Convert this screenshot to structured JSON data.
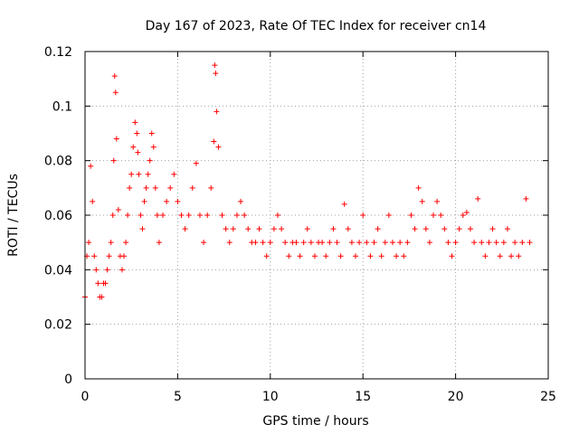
{
  "chart_data": {
    "type": "scatter",
    "title": "Day 167 of 2023, Rate Of TEC Index for receiver cn14",
    "xlabel": "GPS time / hours",
    "ylabel": "ROTI / TECUs",
    "xlim": [
      0,
      25
    ],
    "ylim": [
      0,
      0.12
    ],
    "x_ticks": [
      0,
      5,
      10,
      15,
      20,
      25
    ],
    "x_tick_labels": [
      "0",
      "5",
      "10",
      "15",
      "20",
      "25"
    ],
    "y_ticks": [
      0,
      0.02,
      0.04,
      0.06,
      0.08,
      0.1,
      0.12
    ],
    "y_tick_labels": [
      "0",
      "0.02",
      "0.04",
      "0.06",
      "0.08",
      "0.1",
      "0.12"
    ],
    "grid": true,
    "marker": "+",
    "color": "#ff0000",
    "series": [
      {
        "name": "ROTI",
        "x": [
          0.0,
          0.1,
          0.2,
          0.3,
          0.4,
          0.5,
          0.6,
          0.7,
          0.8,
          0.9,
          1.0,
          1.1,
          1.2,
          1.3,
          1.4,
          1.5,
          1.55,
          1.6,
          1.65,
          1.7,
          1.8,
          1.9,
          2.0,
          2.1,
          2.2,
          2.3,
          2.4,
          2.5,
          2.6,
          2.7,
          2.8,
          2.85,
          2.9,
          3.0,
          3.1,
          3.2,
          3.3,
          3.4,
          3.5,
          3.6,
          3.7,
          3.8,
          3.9,
          4.0,
          4.2,
          4.4,
          4.6,
          4.8,
          5.0,
          5.2,
          5.4,
          5.6,
          5.8,
          6.0,
          6.2,
          6.4,
          6.6,
          6.8,
          6.95,
          7.0,
          7.05,
          7.1,
          7.2,
          7.4,
          7.6,
          7.8,
          8.0,
          8.2,
          8.4,
          8.6,
          8.8,
          9.0,
          9.2,
          9.4,
          9.6,
          9.8,
          10.0,
          10.2,
          10.4,
          10.6,
          10.8,
          11.0,
          11.2,
          11.4,
          11.6,
          11.8,
          12.0,
          12.2,
          12.4,
          12.6,
          12.8,
          13.0,
          13.2,
          13.4,
          13.6,
          13.8,
          14.0,
          14.2,
          14.4,
          14.6,
          14.8,
          15.0,
          15.2,
          15.4,
          15.6,
          15.8,
          16.0,
          16.2,
          16.4,
          16.6,
          16.8,
          17.0,
          17.2,
          17.4,
          17.6,
          17.8,
          18.0,
          18.2,
          18.4,
          18.6,
          18.8,
          19.0,
          19.2,
          19.4,
          19.6,
          19.8,
          20.0,
          20.2,
          20.4,
          20.6,
          20.8,
          21.0,
          21.2,
          21.4,
          21.6,
          21.8,
          22.0,
          22.2,
          22.4,
          22.6,
          22.8,
          23.0,
          23.2,
          23.4,
          23.6,
          23.8,
          24.0
        ],
        "y": [
          0.03,
          0.045,
          0.05,
          0.078,
          0.065,
          0.045,
          0.04,
          0.035,
          0.03,
          0.03,
          0.035,
          0.035,
          0.04,
          0.045,
          0.05,
          0.06,
          0.08,
          0.111,
          0.105,
          0.088,
          0.062,
          0.045,
          0.04,
          0.045,
          0.05,
          0.06,
          0.07,
          0.075,
          0.085,
          0.094,
          0.09,
          0.083,
          0.075,
          0.06,
          0.055,
          0.065,
          0.07,
          0.075,
          0.08,
          0.09,
          0.085,
          0.07,
          0.06,
          0.05,
          0.06,
          0.065,
          0.07,
          0.075,
          0.065,
          0.06,
          0.055,
          0.06,
          0.07,
          0.079,
          0.06,
          0.05,
          0.06,
          0.07,
          0.087,
          0.115,
          0.112,
          0.098,
          0.085,
          0.06,
          0.055,
          0.05,
          0.055,
          0.06,
          0.065,
          0.06,
          0.055,
          0.05,
          0.05,
          0.055,
          0.05,
          0.045,
          0.05,
          0.055,
          0.06,
          0.055,
          0.05,
          0.045,
          0.05,
          0.05,
          0.045,
          0.05,
          0.055,
          0.05,
          0.045,
          0.05,
          0.05,
          0.045,
          0.05,
          0.055,
          0.05,
          0.045,
          0.064,
          0.055,
          0.05,
          0.045,
          0.05,
          0.06,
          0.05,
          0.045,
          0.05,
          0.055,
          0.045,
          0.05,
          0.06,
          0.05,
          0.045,
          0.05,
          0.045,
          0.05,
          0.06,
          0.055,
          0.07,
          0.065,
          0.055,
          0.05,
          0.06,
          0.065,
          0.06,
          0.055,
          0.05,
          0.045,
          0.05,
          0.055,
          0.06,
          0.061,
          0.055,
          0.05,
          0.066,
          0.05,
          0.045,
          0.05,
          0.055,
          0.05,
          0.045,
          0.05,
          0.055,
          0.045,
          0.05,
          0.045,
          0.05,
          0.066,
          0.05
        ]
      }
    ]
  }
}
